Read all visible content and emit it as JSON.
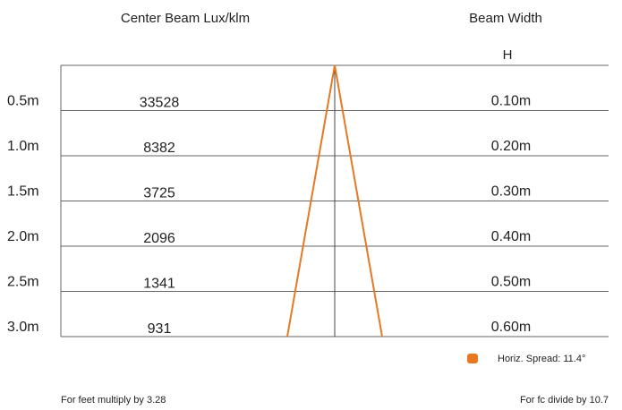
{
  "header": {
    "lux_title": "Center Beam Lux/klm",
    "width_title": "Beam Width",
    "width_sub": "H"
  },
  "rows": [
    {
      "distance": "0.5m",
      "lux": "33528",
      "width": "0.10m"
    },
    {
      "distance": "1.0m",
      "lux": "8382",
      "width": "0.20m"
    },
    {
      "distance": "1.5m",
      "lux": "3725",
      "width": "0.30m"
    },
    {
      "distance": "2.0m",
      "lux": "2096",
      "width": "0.40m"
    },
    {
      "distance": "2.5m",
      "lux": "1341",
      "width": "0.50m"
    },
    {
      "distance": "3.0m",
      "lux": "931",
      "width": "0.60m"
    }
  ],
  "legend": {
    "label": "Horiz. Spread: 11.4°"
  },
  "footer": {
    "left": "For feet multiply by 3.28",
    "right": "For fc divide by 10.7"
  }
}
